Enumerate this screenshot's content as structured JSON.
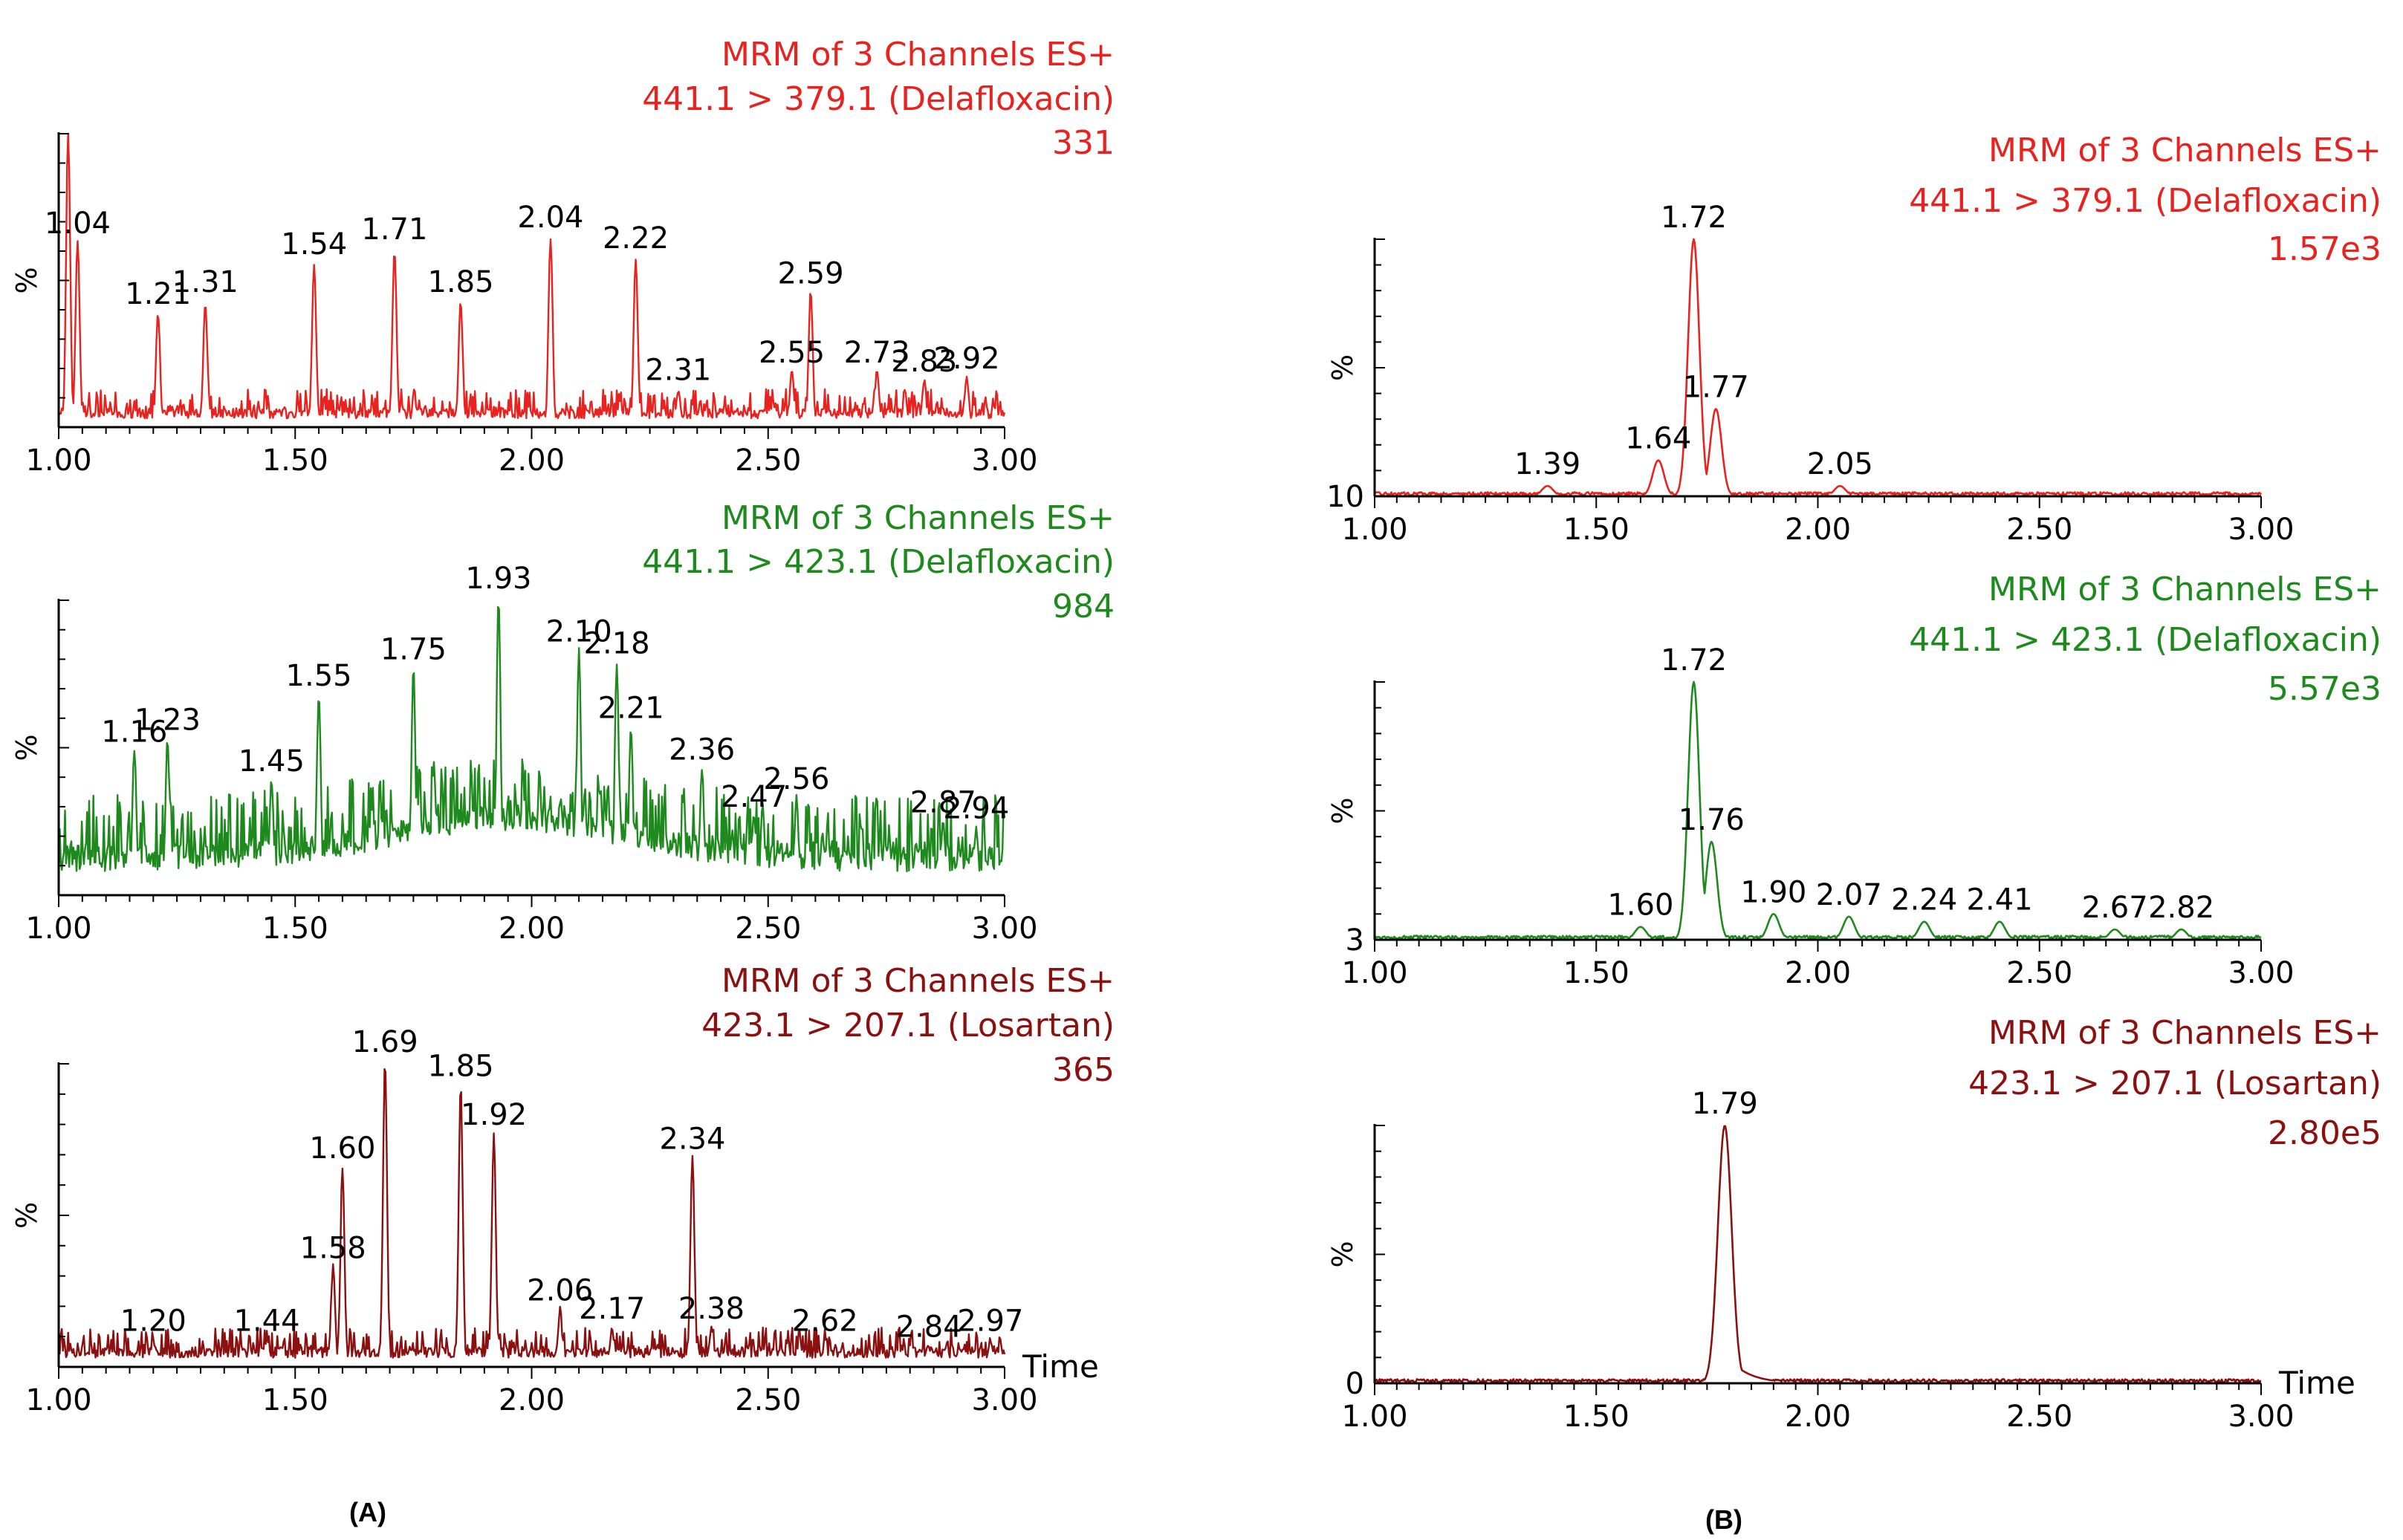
{
  "figure": {
    "panel_a_label": "(A)",
    "panel_b_label": "(B)"
  },
  "time_label": "Time",
  "colors": {
    "red": "#e8231f",
    "green": "#1e8a1e",
    "dark_red": "#8b1010",
    "axis": "#000000"
  },
  "chart_data": [
    {
      "id": "A1",
      "panel": "A",
      "type": "line",
      "color_key": "red",
      "header": [
        "MRM of 3 Channels ES+",
        "441.1 > 379.1 (Delafloxacin)",
        "331"
      ],
      "ylabel": "%",
      "ylim": [
        0,
        100
      ],
      "xlim": [
        1.0,
        3.0
      ],
      "x_ticks": [
        "1.00",
        "1.50",
        "2.00",
        "2.50",
        "3.00"
      ],
      "baseline_label": "",
      "peaks": [
        {
          "x": 1.02,
          "y": 100,
          "label": ""
        },
        {
          "x": 1.04,
          "y": 62,
          "label": "1.04"
        },
        {
          "x": 1.21,
          "y": 38,
          "label": "1.21"
        },
        {
          "x": 1.31,
          "y": 42,
          "label": "1.31"
        },
        {
          "x": 1.54,
          "y": 55,
          "label": "1.54"
        },
        {
          "x": 1.71,
          "y": 60,
          "label": "1.71"
        },
        {
          "x": 1.85,
          "y": 42,
          "label": "1.85"
        },
        {
          "x": 2.04,
          "y": 64,
          "label": "2.04"
        },
        {
          "x": 2.22,
          "y": 57,
          "label": "2.22"
        },
        {
          "x": 2.31,
          "y": 12,
          "label": "2.31"
        },
        {
          "x": 2.55,
          "y": 18,
          "label": "2.55"
        },
        {
          "x": 2.59,
          "y": 45,
          "label": "2.59"
        },
        {
          "x": 2.73,
          "y": 18,
          "label": "2.73"
        },
        {
          "x": 2.83,
          "y": 15,
          "label": "2.83"
        },
        {
          "x": 2.92,
          "y": 16,
          "label": "2.92"
        }
      ]
    },
    {
      "id": "A2",
      "panel": "A",
      "type": "line",
      "color_key": "green",
      "header": [
        "MRM of 3 Channels ES+",
        "441.1 > 423.1 (Delafloxacin)",
        "984"
      ],
      "ylabel": "%",
      "ylim": [
        0,
        100
      ],
      "xlim": [
        1.0,
        3.0
      ],
      "x_ticks": [
        "1.00",
        "1.50",
        "2.00",
        "2.50",
        "3.00"
      ],
      "baseline_label": "",
      "peaks": [
        {
          "x": 1.16,
          "y": 48,
          "label": "1.16"
        },
        {
          "x": 1.23,
          "y": 52,
          "label": "1.23"
        },
        {
          "x": 1.45,
          "y": 38,
          "label": "1.45"
        },
        {
          "x": 1.55,
          "y": 67,
          "label": "1.55"
        },
        {
          "x": 1.75,
          "y": 76,
          "label": "1.75"
        },
        {
          "x": 1.93,
          "y": 100,
          "label": "1.93"
        },
        {
          "x": 2.1,
          "y": 82,
          "label": "2.10"
        },
        {
          "x": 2.18,
          "y": 78,
          "label": "2.18"
        },
        {
          "x": 2.21,
          "y": 56,
          "label": "2.21"
        },
        {
          "x": 2.36,
          "y": 42,
          "label": "2.36"
        },
        {
          "x": 2.47,
          "y": 26,
          "label": "2.47"
        },
        {
          "x": 2.56,
          "y": 32,
          "label": "2.56"
        },
        {
          "x": 2.87,
          "y": 24,
          "label": "2.87"
        },
        {
          "x": 2.94,
          "y": 22,
          "label": "2.94"
        }
      ]
    },
    {
      "id": "A3",
      "panel": "A",
      "type": "line",
      "color_key": "dark_red",
      "header": [
        "MRM of 3 Channels ES+",
        "423.1 > 207.1 (Losartan)",
        "365"
      ],
      "ylabel": "%",
      "ylim": [
        0,
        100
      ],
      "xlim": [
        1.0,
        3.0
      ],
      "x_ticks": [
        "1.00",
        "1.50",
        "2.00",
        "2.50",
        "3.00"
      ],
      "baseline_label": "",
      "show_time": true,
      "peaks": [
        {
          "x": 1.2,
          "y": 8,
          "label": "1.20"
        },
        {
          "x": 1.44,
          "y": 8,
          "label": "1.44"
        },
        {
          "x": 1.58,
          "y": 32,
          "label": "1.58"
        },
        {
          "x": 1.6,
          "y": 65,
          "label": "1.60"
        },
        {
          "x": 1.69,
          "y": 100,
          "label": "1.69"
        },
        {
          "x": 1.85,
          "y": 92,
          "label": "1.85"
        },
        {
          "x": 1.92,
          "y": 76,
          "label": "1.92"
        },
        {
          "x": 2.06,
          "y": 18,
          "label": "2.06"
        },
        {
          "x": 2.17,
          "y": 12,
          "label": "2.17"
        },
        {
          "x": 2.34,
          "y": 68,
          "label": "2.34"
        },
        {
          "x": 2.38,
          "y": 12,
          "label": "2.38"
        },
        {
          "x": 2.62,
          "y": 8,
          "label": "2.62"
        },
        {
          "x": 2.84,
          "y": 6,
          "label": "2.84"
        },
        {
          "x": 2.97,
          "y": 8,
          "label": "2.97"
        }
      ]
    },
    {
      "id": "B1",
      "panel": "B",
      "type": "line",
      "color_key": "red",
      "header": [
        "MRM of 3 Channels ES+",
        "441.1 > 379.1 (Delafloxacin)",
        "1.57e3"
      ],
      "ylabel": "%",
      "ylim": [
        0,
        100
      ],
      "xlim": [
        1.0,
        3.0
      ],
      "x_ticks": [
        "1.00",
        "1.50",
        "2.00",
        "2.50",
        "3.00"
      ],
      "baseline_label": "10",
      "peaks": [
        {
          "x": 1.39,
          "y": 4,
          "label": "1.39"
        },
        {
          "x": 1.64,
          "y": 14,
          "label": "1.64"
        },
        {
          "x": 1.72,
          "y": 100,
          "label": "1.72"
        },
        {
          "x": 1.77,
          "y": 34,
          "label": "1.77"
        },
        {
          "x": 2.05,
          "y": 4,
          "label": "2.05"
        }
      ]
    },
    {
      "id": "B2",
      "panel": "B",
      "type": "line",
      "color_key": "green",
      "header": [
        "MRM of 3 Channels ES+",
        "441.1 > 423.1 (Delafloxacin)",
        "5.57e3"
      ],
      "ylabel": "%",
      "ylim": [
        0,
        100
      ],
      "xlim": [
        1.0,
        3.0
      ],
      "x_ticks": [
        "1.00",
        "1.50",
        "2.00",
        "2.50",
        "3.00"
      ],
      "baseline_label": "3",
      "peaks": [
        {
          "x": 1.6,
          "y": 5,
          "label": "1.60"
        },
        {
          "x": 1.72,
          "y": 100,
          "label": "1.72"
        },
        {
          "x": 1.76,
          "y": 38,
          "label": "1.76"
        },
        {
          "x": 1.9,
          "y": 10,
          "label": "1.90"
        },
        {
          "x": 2.07,
          "y": 9,
          "label": "2.07"
        },
        {
          "x": 2.24,
          "y": 7,
          "label": "2.24"
        },
        {
          "x": 2.41,
          "y": 7,
          "label": "2.41"
        },
        {
          "x": 2.67,
          "y": 4,
          "label": "2.67"
        },
        {
          "x": 2.82,
          "y": 4,
          "label": "2.82"
        }
      ]
    },
    {
      "id": "B3",
      "panel": "B",
      "type": "line",
      "color_key": "dark_red",
      "header": [
        "MRM of 3 Channels ES+",
        "423.1 > 207.1 (Losartan)",
        "2.80e5"
      ],
      "ylabel": "%",
      "ylim": [
        0,
        100
      ],
      "xlim": [
        1.0,
        3.0
      ],
      "x_ticks": [
        "1.00",
        "1.50",
        "2.00",
        "2.50",
        "3.00"
      ],
      "baseline_label": "0",
      "show_time": true,
      "peaks": [
        {
          "x": 1.79,
          "y": 100,
          "label": "1.79"
        }
      ]
    }
  ]
}
